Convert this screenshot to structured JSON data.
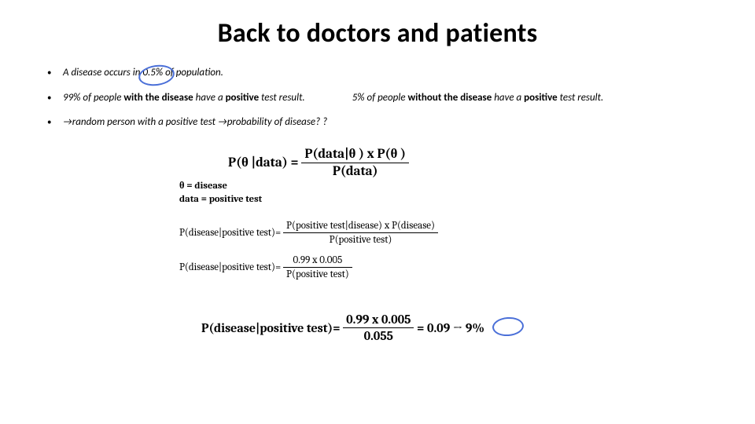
{
  "colors": {
    "background": "#ffffff",
    "text": "#000000",
    "circle_stroke": "#4a6fd8"
  },
  "title": "Back to doctors and patients",
  "bullets": {
    "b1_pre": "A disease occurs in ",
    "b1_val": "0.5%",
    "b1_post": " of population.",
    "b2a_pre": "99% of people ",
    "b2a_bold": "with the disease",
    "b2a_mid": " have a ",
    "b2a_bold2": "positive",
    "b2a_post": " test result.",
    "b2b_pre": "5% of people ",
    "b2b_bold": "without the disease",
    "b2b_mid": " have a ",
    "b2b_bold2": "positive",
    "b2b_post": " test result.",
    "b3": " →random person with a positive test  →probability of disease? ?"
  },
  "math": {
    "main_lhs": "P(θ |data) = ",
    "main_num": "P(data|θ ) x P(θ )",
    "main_den": "P(data)",
    "def1": "θ = disease",
    "def2": "data = positive test",
    "line1_lhs": "P(disease|positive test)= ",
    "line1_num": "P(positive test|disease) x P(disease)",
    "line1_den": "P(positive test)",
    "line2_lhs": "P(disease|positive test)= ",
    "line2_num": "0.99 x 0.005",
    "line2_den": "P(positive test)",
    "final_lhs": "P(disease|positive test)= ",
    "final_num": "0.99 x 0.005",
    "final_den": "0.055",
    "final_eq": " = 0.09 → ",
    "final_ans": "9%"
  }
}
